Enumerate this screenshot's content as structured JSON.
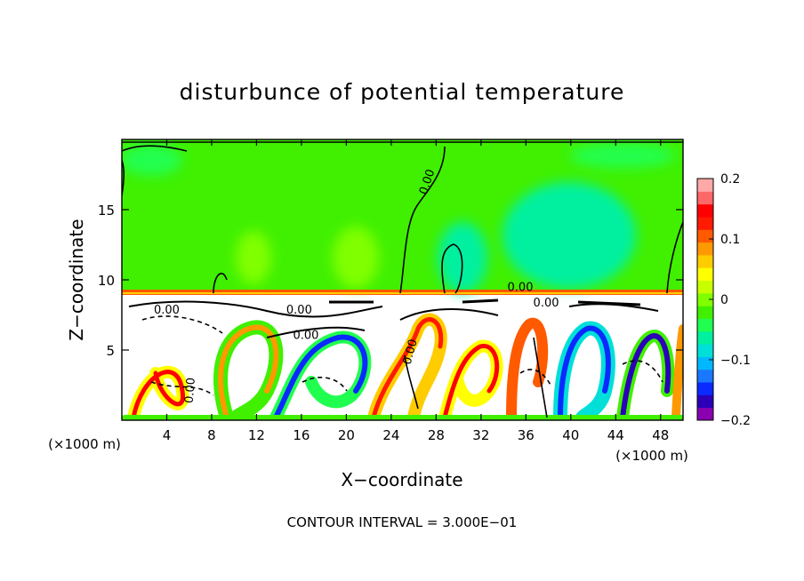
{
  "chart_data": {
    "type": "heatmap",
    "title": "disturbunce of potential temperature",
    "xlabel": "X−coordinate",
    "ylabel": "Z−coordinate",
    "x_unit_left": "(×1000 m)",
    "x_unit_right": "(×1000 m)",
    "xlim": [
      0,
      50
    ],
    "ylim": [
      0,
      20
    ],
    "x_ticks": [
      4,
      8,
      12,
      16,
      20,
      24,
      28,
      32,
      36,
      40,
      44,
      48
    ],
    "x_tick_labels": [
      "4",
      "8",
      "12",
      "16",
      "20",
      "24",
      "28",
      "32",
      "36",
      "40",
      "44",
      "48"
    ],
    "y_ticks": [
      5,
      10,
      15
    ],
    "y_tick_labels": [
      "5",
      "10",
      "15"
    ],
    "grid": false,
    "contour_interval_text": "CONTOUR INTERVAL = 3.000E−01",
    "contour_labels": [
      {
        "text": "0.00",
        "x": 27.5,
        "y": 16.9,
        "angle": -72
      },
      {
        "text": "0.00",
        "x": 35.5,
        "y": 9.2,
        "angle": 0
      },
      {
        "text": "0.00",
        "x": 4.0,
        "y": 7.6,
        "angle": 0
      },
      {
        "text": "0.00",
        "x": 15.8,
        "y": 7.6,
        "angle": 0
      },
      {
        "text": "0.00",
        "x": 16.4,
        "y": 5.8,
        "angle": 0
      },
      {
        "text": "0.00",
        "x": 26.0,
        "y": 4.8,
        "angle": -75
      },
      {
        "text": "0.00",
        "x": 6.4,
        "y": 2.1,
        "angle": -85
      },
      {
        "text": "0.00",
        "x": 37.8,
        "y": 8.1,
        "angle": 0
      }
    ],
    "colorbar": {
      "vmin": -0.2,
      "vmax": 0.2,
      "ticks": [
        0.2,
        0.1,
        0,
        -0.1,
        -0.2
      ],
      "tick_labels": [
        "0.2",
        "0.1",
        "0",
        "−0.1",
        "−0.2"
      ],
      "colors": [
        "#8a00b0",
        "#2b00b8",
        "#0a2aff",
        "#1a78ff",
        "#00b8ff",
        "#00e0d8",
        "#00f0a0",
        "#20ff50",
        "#40f000",
        "#80ff00",
        "#c8ff00",
        "#ffff00",
        "#ffcc00",
        "#ff9900",
        "#ff5a00",
        "#ff1a00",
        "#ff0000",
        "#ff6868",
        "#ffa8a8"
      ],
      "placement": "right"
    },
    "description_fields": {
      "upper_layer_value_approx": 0.0,
      "boundary_height": 9.3
    }
  }
}
